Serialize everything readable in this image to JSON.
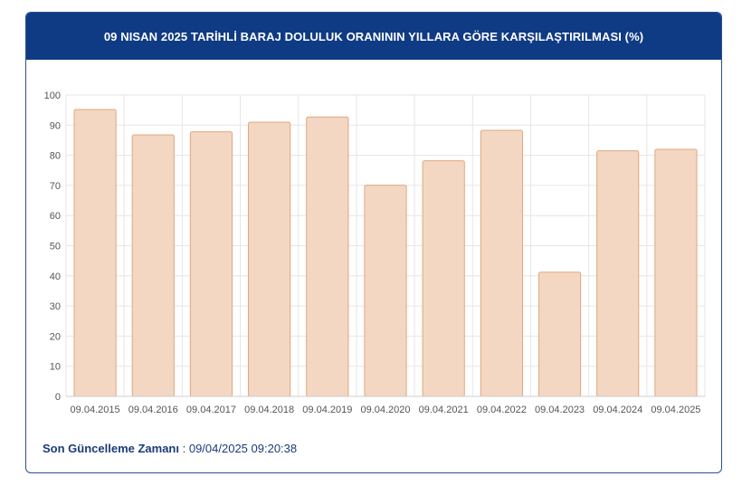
{
  "header": {
    "title": "09 NISAN 2025 TARİHLİ BARAJ DOLULUK ORANININ YILLARA GÖRE KARŞILAŞTIRILMASI (%)"
  },
  "footer": {
    "label": "Son Güncelleme Zamanı",
    "separator": " : ",
    "value": "09/04/2025 09:20:38"
  },
  "colors": {
    "header_bg": "#0f3b84",
    "bar_fill": "#f3d7c3",
    "bar_stroke": "#e0a77f",
    "grid": "#e6e6e6",
    "tick_text": "#555555"
  },
  "chart_data": {
    "type": "bar",
    "categories": [
      "09.04.2015",
      "09.04.2016",
      "09.04.2017",
      "09.04.2018",
      "09.04.2019",
      "09.04.2020",
      "09.04.2021",
      "09.04.2022",
      "09.04.2023",
      "09.04.2024",
      "09.04.2025"
    ],
    "values": [
      95.2,
      86.8,
      87.8,
      91.0,
      92.7,
      70.1,
      78.2,
      88.3,
      41.2,
      81.5,
      82.0
    ],
    "ylim": [
      0,
      100
    ],
    "yticks": [
      0,
      10,
      20,
      30,
      40,
      50,
      60,
      70,
      80,
      90,
      100
    ],
    "grid": true,
    "legend": "none"
  }
}
